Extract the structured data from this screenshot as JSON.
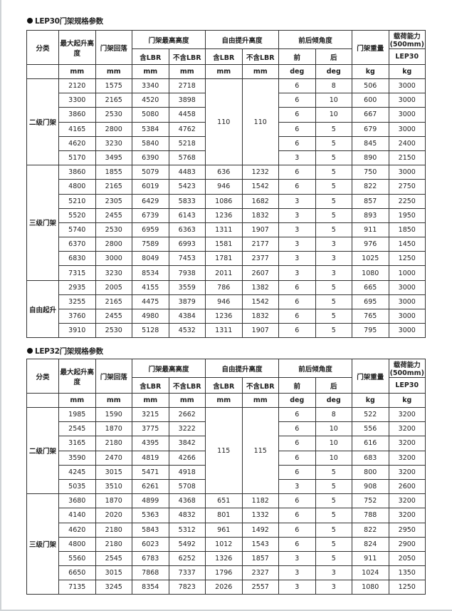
{
  "headers": {
    "category": "分类",
    "max_lift": "最大起升高度",
    "lowered_height": "门架回落",
    "max_height": "门架最高高度",
    "free_lift": "自由提升高度",
    "tilt": "前后倾角度",
    "mast_weight": "门架重量",
    "capacity": "载荷能力(500mm)",
    "with_lbr": "含LBR",
    "without_lbr": "不含LBR",
    "forward": "前",
    "backward": "后",
    "model_lep30": "LEP30",
    "units": [
      "mm",
      "mm",
      "mm",
      "mm",
      "mm",
      "mm",
      "deg",
      "deg",
      "kg",
      "kg"
    ]
  },
  "tables": [
    {
      "title": "LEP30门架规格参数",
      "groups": [
        {
          "name": "二级门架",
          "free_lift_merged": [
            "110",
            "110"
          ],
          "rows": [
            [
              "2120",
              "1575",
              "3340",
              "2718",
              "6",
              "8",
              "506",
              "3000"
            ],
            [
              "3300",
              "2165",
              "4520",
              "3898",
              "6",
              "10",
              "600",
              "3000"
            ],
            [
              "3860",
              "2530",
              "5080",
              "4458",
              "6",
              "10",
              "667",
              "3000"
            ],
            [
              "4165",
              "2800",
              "5384",
              "4762",
              "6",
              "5",
              "679",
              "3000"
            ],
            [
              "4620",
              "3230",
              "5840",
              "5218",
              "6",
              "5",
              "845",
              "2400"
            ],
            [
              "5170",
              "3495",
              "6390",
              "5768",
              "3",
              "5",
              "890",
              "2150"
            ]
          ]
        },
        {
          "name": "三级门架",
          "free_lift_merged": null,
          "rows": [
            [
              "3860",
              "1855",
              "5079",
              "4483",
              "636",
              "1232",
              "6",
              "5",
              "750",
              "3000"
            ],
            [
              "4800",
              "2165",
              "6019",
              "5423",
              "946",
              "1542",
              "6",
              "5",
              "822",
              "2750"
            ],
            [
              "5210",
              "2305",
              "6429",
              "5833",
              "1086",
              "1682",
              "3",
              "5",
              "857",
              "2250"
            ],
            [
              "5520",
              "2455",
              "6739",
              "6143",
              "1236",
              "1832",
              "3",
              "5",
              "893",
              "1950"
            ],
            [
              "5740",
              "2530",
              "6959",
              "6363",
              "1311",
              "1907",
              "3",
              "5",
              "911",
              "1850"
            ],
            [
              "6370",
              "2800",
              "7589",
              "6993",
              "1581",
              "2177",
              "3",
              "3",
              "976",
              "1450"
            ],
            [
              "6830",
              "3000",
              "8049",
              "7453",
              "1781",
              "2377",
              "3",
              "3",
              "1025",
              "1250"
            ],
            [
              "7315",
              "3230",
              "8534",
              "7938",
              "2011",
              "2607",
              "3",
              "3",
              "1080",
              "1000"
            ]
          ]
        },
        {
          "name": "自由起升",
          "free_lift_merged": null,
          "rows": [
            [
              "2935",
              "2005",
              "4155",
              "3559",
              "786",
              "1382",
              "6",
              "5",
              "665",
              "3000"
            ],
            [
              "3255",
              "2165",
              "4475",
              "3879",
              "946",
              "1542",
              "6",
              "5",
              "695",
              "3000"
            ],
            [
              "3760",
              "2455",
              "4980",
              "4384",
              "1236",
              "1832",
              "6",
              "5",
              "765",
              "3000"
            ],
            [
              "3910",
              "2530",
              "5128",
              "4532",
              "1311",
              "1907",
              "6",
              "5",
              "795",
              "3000"
            ]
          ]
        }
      ]
    },
    {
      "title": "LEP32门架规格参数",
      "groups": [
        {
          "name": "二级门架",
          "free_lift_merged": [
            "115",
            "115"
          ],
          "rows": [
            [
              "1985",
              "1590",
              "3215",
              "2662",
              "6",
              "8",
              "522",
              "3200"
            ],
            [
              "2545",
              "1870",
              "3775",
              "3222",
              "6",
              "10",
              "556",
              "3200"
            ],
            [
              "3165",
              "2180",
              "4395",
              "3842",
              "6",
              "10",
              "616",
              "3200"
            ],
            [
              "3590",
              "2470",
              "4819",
              "4266",
              "6",
              "10",
              "683",
              "3200"
            ],
            [
              "4245",
              "3015",
              "5471",
              "4918",
              "6",
              "5",
              "800",
              "3200"
            ],
            [
              "5035",
              "3510",
              "6261",
              "5708",
              "3",
              "5",
              "908",
              "2600"
            ]
          ]
        },
        {
          "name": "三级门架",
          "free_lift_merged": null,
          "rows": [
            [
              "3680",
              "1870",
              "4899",
              "4368",
              "651",
              "1182",
              "6",
              "5",
              "752",
              "3200"
            ],
            [
              "4140",
              "2020",
              "5363",
              "4832",
              "801",
              "1332",
              "6",
              "5",
              "788",
              "3200"
            ],
            [
              "4620",
              "2180",
              "5843",
              "5312",
              "961",
              "1492",
              "6",
              "5",
              "822",
              "2950"
            ],
            [
              "4800",
              "2180",
              "6023",
              "5492",
              "1012",
              "1543",
              "6",
              "5",
              "824",
              "2900"
            ],
            [
              "5560",
              "2545",
              "6783",
              "6252",
              "1326",
              "1857",
              "3",
              "5",
              "911",
              "2050"
            ],
            [
              "6650",
              "3015",
              "7868",
              "7337",
              "1796",
              "2327",
              "3",
              "3",
              "1024",
              "1350"
            ],
            [
              "7135",
              "3245",
              "8354",
              "7823",
              "2026",
              "2557",
              "3",
              "3",
              "1080",
              "1250"
            ]
          ]
        }
      ]
    }
  ]
}
